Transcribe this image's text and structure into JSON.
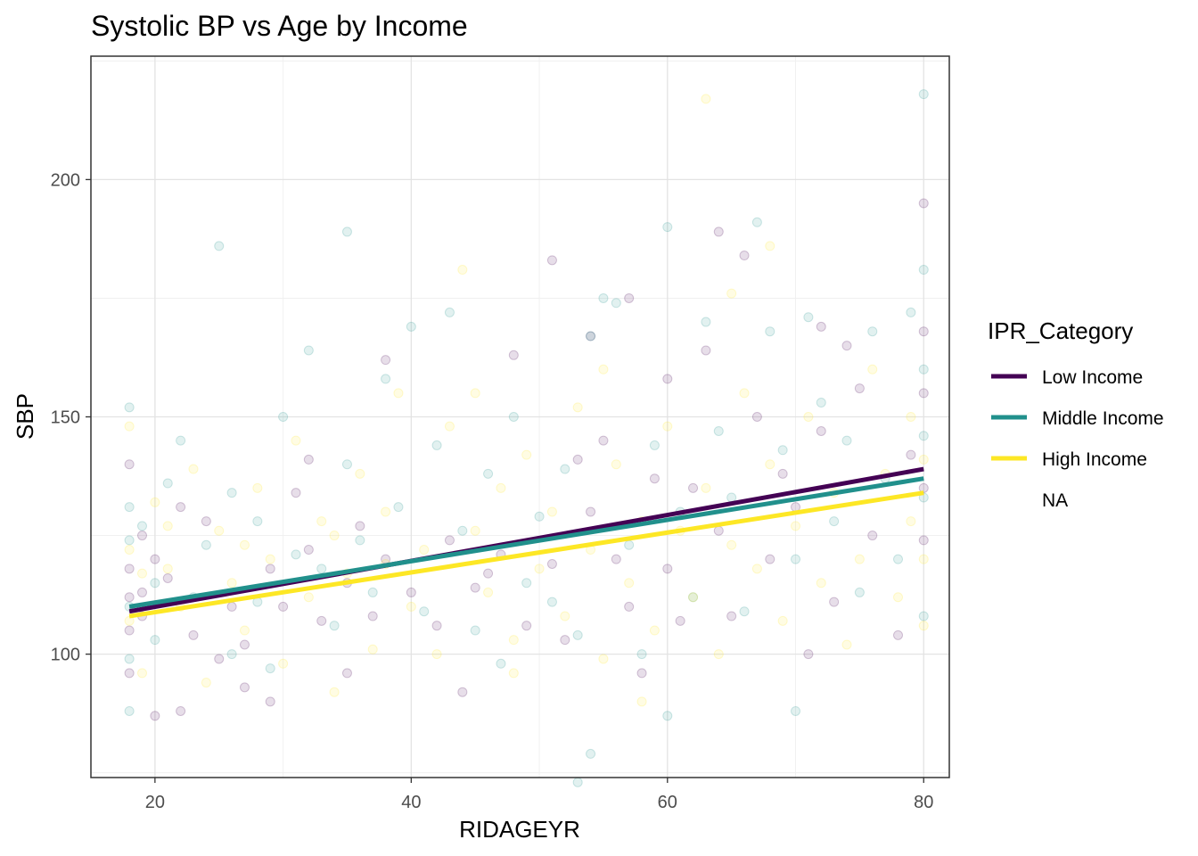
{
  "chart_data": {
    "type": "scatter",
    "title": "Systolic BP vs Age by Income",
    "xlabel": "RIDAGEYR",
    "ylabel": "SBP",
    "xlim": [
      15,
      82
    ],
    "ylim": [
      74,
      226
    ],
    "x_ticks": [
      20,
      40,
      60,
      80
    ],
    "y_ticks": [
      100,
      150,
      200
    ],
    "grid": true,
    "legend": {
      "title": "IPR_Category",
      "position": "right",
      "entries": [
        "Low Income",
        "Middle Income",
        "High Income",
        "NA"
      ]
    },
    "series": [
      {
        "name": "Low Income",
        "color": "#440154",
        "trend": {
          "x": [
            18,
            80
          ],
          "y": [
            109,
            139
          ]
        },
        "points": [
          [
            18,
            140
          ],
          [
            18,
            118
          ],
          [
            18,
            112
          ],
          [
            18,
            105
          ],
          [
            18,
            96
          ],
          [
            19,
            125
          ],
          [
            19,
            108
          ],
          [
            20,
            120
          ],
          [
            20,
            87
          ],
          [
            21,
            116
          ],
          [
            22,
            88
          ],
          [
            23,
            104
          ],
          [
            24,
            128
          ],
          [
            26,
            110
          ],
          [
            27,
            102
          ],
          [
            27,
            93
          ],
          [
            29,
            118
          ],
          [
            29,
            90
          ],
          [
            30,
            110
          ],
          [
            32,
            122
          ],
          [
            32,
            141
          ],
          [
            33,
            107
          ],
          [
            35,
            115
          ],
          [
            35,
            96
          ],
          [
            37,
            108
          ],
          [
            38,
            162
          ],
          [
            38,
            120
          ],
          [
            40,
            113
          ],
          [
            42,
            106
          ],
          [
            43,
            124
          ],
          [
            44,
            92
          ],
          [
            45,
            114
          ],
          [
            47,
            121
          ],
          [
            48,
            163
          ],
          [
            49,
            106
          ],
          [
            51,
            119
          ],
          [
            51,
            183
          ],
          [
            52,
            103
          ],
          [
            54,
            167
          ],
          [
            54,
            130
          ],
          [
            55,
            145
          ],
          [
            56,
            120
          ],
          [
            57,
            110
          ],
          [
            58,
            96
          ],
          [
            59,
            137
          ],
          [
            60,
            158
          ],
          [
            60,
            118
          ],
          [
            61,
            107
          ],
          [
            62,
            135
          ],
          [
            63,
            164
          ],
          [
            64,
            126
          ],
          [
            64,
            189
          ],
          [
            65,
            108
          ],
          [
            66,
            184
          ],
          [
            67,
            150
          ],
          [
            68,
            120
          ],
          [
            70,
            131
          ],
          [
            71,
            100
          ],
          [
            72,
            169
          ],
          [
            72,
            147
          ],
          [
            73,
            111
          ],
          [
            75,
            156
          ],
          [
            76,
            125
          ],
          [
            78,
            104
          ],
          [
            80,
            195
          ],
          [
            80,
            168
          ],
          [
            80,
            155
          ],
          [
            80,
            135
          ],
          [
            80,
            124
          ],
          [
            79,
            142
          ],
          [
            74,
            165
          ],
          [
            69,
            138
          ],
          [
            57,
            175
          ],
          [
            53,
            141
          ],
          [
            46,
            117
          ],
          [
            36,
            127
          ],
          [
            31,
            134
          ],
          [
            25,
            99
          ],
          [
            22,
            131
          ],
          [
            19,
            113
          ]
        ]
      },
      {
        "name": "Middle Income",
        "color": "#21908C",
        "trend": {
          "x": [
            18,
            80
          ],
          "y": [
            110,
            137
          ]
        },
        "points": [
          [
            18,
            152
          ],
          [
            18,
            131
          ],
          [
            18,
            124
          ],
          [
            18,
            110
          ],
          [
            18,
            99
          ],
          [
            18,
            88
          ],
          [
            19,
            127
          ],
          [
            20,
            115
          ],
          [
            20,
            103
          ],
          [
            21,
            136
          ],
          [
            22,
            145
          ],
          [
            23,
            112
          ],
          [
            24,
            123
          ],
          [
            25,
            186
          ],
          [
            26,
            134
          ],
          [
            26,
            100
          ],
          [
            28,
            128
          ],
          [
            28,
            111
          ],
          [
            29,
            97
          ],
          [
            30,
            150
          ],
          [
            31,
            121
          ],
          [
            32,
            164
          ],
          [
            33,
            118
          ],
          [
            34,
            106
          ],
          [
            35,
            189
          ],
          [
            35,
            140
          ],
          [
            36,
            124
          ],
          [
            37,
            113
          ],
          [
            38,
            158
          ],
          [
            39,
            131
          ],
          [
            40,
            169
          ],
          [
            41,
            109
          ],
          [
            42,
            144
          ],
          [
            43,
            172
          ],
          [
            44,
            126
          ],
          [
            45,
            105
          ],
          [
            46,
            138
          ],
          [
            47,
            98
          ],
          [
            48,
            150
          ],
          [
            49,
            115
          ],
          [
            50,
            129
          ],
          [
            51,
            111
          ],
          [
            52,
            139
          ],
          [
            53,
            104
          ],
          [
            53,
            73
          ],
          [
            54,
            79
          ],
          [
            54,
            167
          ],
          [
            55,
            175
          ],
          [
            56,
            174
          ],
          [
            57,
            123
          ],
          [
            58,
            100
          ],
          [
            59,
            144
          ],
          [
            60,
            190
          ],
          [
            60,
            87
          ],
          [
            61,
            130
          ],
          [
            62,
            112
          ],
          [
            63,
            170
          ],
          [
            64,
            147
          ],
          [
            65,
            133
          ],
          [
            66,
            109
          ],
          [
            67,
            191
          ],
          [
            68,
            168
          ],
          [
            69,
            143
          ],
          [
            70,
            120
          ],
          [
            70,
            88
          ],
          [
            71,
            171
          ],
          [
            72,
            153
          ],
          [
            73,
            128
          ],
          [
            74,
            145
          ],
          [
            75,
            113
          ],
          [
            76,
            168
          ],
          [
            77,
            137
          ],
          [
            78,
            120
          ],
          [
            79,
            172
          ],
          [
            80,
            218
          ],
          [
            80,
            181
          ],
          [
            80,
            160
          ],
          [
            80,
            146
          ],
          [
            80,
            133
          ],
          [
            80,
            108
          ]
        ]
      },
      {
        "name": "High Income",
        "color": "#FDE725",
        "trend": {
          "x": [
            18,
            80
          ],
          "y": [
            108,
            134
          ]
        },
        "points": [
          [
            18,
            148
          ],
          [
            18,
            122
          ],
          [
            18,
            107
          ],
          [
            19,
            96
          ],
          [
            20,
            132
          ],
          [
            21,
            118
          ],
          [
            22,
            110
          ],
          [
            23,
            139
          ],
          [
            24,
            94
          ],
          [
            25,
            126
          ],
          [
            26,
            115
          ],
          [
            27,
            105
          ],
          [
            28,
            135
          ],
          [
            29,
            120
          ],
          [
            30,
            98
          ],
          [
            31,
            145
          ],
          [
            32,
            112
          ],
          [
            33,
            128
          ],
          [
            34,
            92
          ],
          [
            35,
            117
          ],
          [
            36,
            138
          ],
          [
            37,
            101
          ],
          [
            38,
            130
          ],
          [
            39,
            155
          ],
          [
            40,
            110
          ],
          [
            41,
            122
          ],
          [
            42,
            100
          ],
          [
            43,
            148
          ],
          [
            44,
            181
          ],
          [
            45,
            126
          ],
          [
            46,
            113
          ],
          [
            47,
            135
          ],
          [
            48,
            103
          ],
          [
            49,
            142
          ],
          [
            50,
            118
          ],
          [
            51,
            130
          ],
          [
            52,
            108
          ],
          [
            53,
            152
          ],
          [
            54,
            122
          ],
          [
            55,
            99
          ],
          [
            56,
            140
          ],
          [
            57,
            115
          ],
          [
            58,
            128
          ],
          [
            59,
            105
          ],
          [
            60,
            148
          ],
          [
            61,
            126
          ],
          [
            62,
            112
          ],
          [
            63,
            217
          ],
          [
            63,
            135
          ],
          [
            64,
            100
          ],
          [
            65,
            123
          ],
          [
            66,
            155
          ],
          [
            67,
            118
          ],
          [
            68,
            186
          ],
          [
            68,
            140
          ],
          [
            69,
            107
          ],
          [
            70,
            127
          ],
          [
            71,
            150
          ],
          [
            72,
            115
          ],
          [
            73,
            134
          ],
          [
            74,
            102
          ],
          [
            75,
            120
          ],
          [
            76,
            160
          ],
          [
            77,
            138
          ],
          [
            78,
            112
          ],
          [
            79,
            128
          ],
          [
            80,
            120
          ],
          [
            80,
            141
          ],
          [
            80,
            106
          ],
          [
            79,
            150
          ],
          [
            65,
            176
          ],
          [
            55,
            160
          ],
          [
            45,
            155
          ],
          [
            34,
            125
          ],
          [
            27,
            123
          ],
          [
            21,
            127
          ],
          [
            19,
            117
          ],
          [
            58,
            90
          ],
          [
            48,
            96
          ],
          [
            38,
            119
          ]
        ]
      }
    ]
  }
}
